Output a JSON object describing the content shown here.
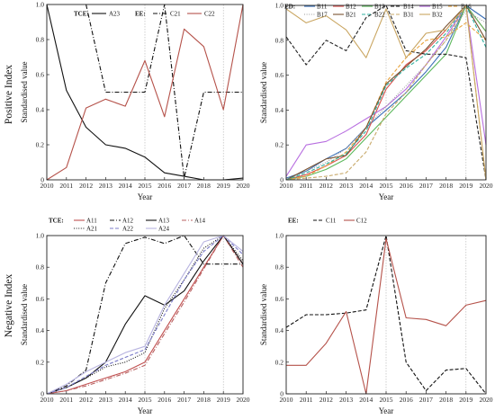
{
  "row_labels": {
    "top": "Positive Index",
    "bottom": "Negative Index"
  },
  "chart_data": [
    {
      "type": "line",
      "panel": "top-left",
      "xlabel": "Year",
      "ylabel": "Standardised value",
      "xlim": [
        2010,
        2020
      ],
      "ylim": [
        0,
        1
      ],
      "x_ticks": [
        "2010",
        "2011",
        "2012",
        "2013",
        "2014",
        "2015",
        "2016",
        "2017",
        "2018",
        "2019",
        "2020"
      ],
      "y_ticks": [
        "0",
        "0.2",
        "0.4",
        "0.6",
        "0.8",
        "1.0"
      ],
      "reference_lines_x": [
        2015,
        2019
      ],
      "legend": {
        "placement": "top",
        "groups": [
          {
            "title": "TCE:",
            "names": [
              "A23"
            ]
          },
          {
            "title": "EE:",
            "names": [
              "C21",
              "C22"
            ]
          }
        ]
      },
      "x": [
        2010,
        2011,
        2012,
        2013,
        2014,
        2015,
        2016,
        2017,
        2018,
        2019,
        2020
      ],
      "series": [
        {
          "name": "A23",
          "color": "#111111",
          "dash": "solid",
          "values": [
            1.0,
            0.51,
            0.3,
            0.2,
            0.18,
            0.13,
            0.04,
            0.02,
            0.0,
            0.0,
            0.01
          ]
        },
        {
          "name": "C21",
          "color": "#111111",
          "dash": "dashdot",
          "values": [
            null,
            null,
            1.0,
            0.5,
            0.5,
            0.5,
            1.0,
            0.01,
            0.5,
            0.5,
            0.5
          ]
        },
        {
          "name": "C22",
          "color": "#b5524a",
          "dash": "solid",
          "values": [
            0.0,
            0.07,
            0.41,
            0.46,
            0.42,
            0.68,
            0.36,
            0.86,
            0.76,
            0.4,
            1.0
          ]
        }
      ]
    },
    {
      "type": "line",
      "panel": "top-right",
      "xlabel": "Year",
      "ylabel": "Standardised value",
      "xlim": [
        2010,
        2020
      ],
      "ylim": [
        0,
        1
      ],
      "x_ticks": [
        "2010",
        "2011",
        "2012",
        "2013",
        "2014",
        "2015",
        "2016",
        "2017",
        "2018",
        "2019",
        "2020"
      ],
      "y_ticks": [
        "0",
        "0.2",
        "0.4",
        "0.6",
        "0.8",
        "1.0"
      ],
      "reference_lines_x": [
        2015,
        2019
      ],
      "legend": {
        "placement": "top",
        "groups": [
          {
            "title": "ED:",
            "names": [
              "B11",
              "B12",
              "B13",
              "B14",
              "B15",
              "B16",
              "B17",
              "B21",
              "B22",
              "B31",
              "B32"
            ]
          }
        ]
      },
      "x": [
        2010,
        2011,
        2012,
        2013,
        2014,
        2015,
        2016,
        2017,
        2018,
        2019,
        2020
      ],
      "series": [
        {
          "name": "B11",
          "color": "#3b6fb6",
          "dash": "solid",
          "values": [
            0.01,
            0.05,
            0.12,
            0.18,
            0.3,
            0.4,
            0.5,
            0.62,
            0.76,
            1.0,
            0.92
          ]
        },
        {
          "name": "B12",
          "color": "#d9534f",
          "dash": "solid",
          "values": [
            0.0,
            0.03,
            0.08,
            0.14,
            0.26,
            0.52,
            0.66,
            0.74,
            0.86,
            1.0,
            0.85
          ]
        },
        {
          "name": "B13",
          "color": "#5cb85c",
          "dash": "solid",
          "values": [
            0.0,
            0.02,
            0.06,
            0.12,
            0.24,
            0.36,
            0.48,
            0.6,
            0.72,
            1.0,
            0.85
          ]
        },
        {
          "name": "B14",
          "color": "#222222",
          "dash": "dashed",
          "values": [
            0.82,
            0.66,
            0.8,
            0.74,
            0.93,
            1.0,
            0.74,
            0.72,
            0.72,
            0.7,
            0.0
          ]
        },
        {
          "name": "B15",
          "color": "#b86fe0",
          "dash": "solid",
          "values": [
            0.02,
            0.2,
            0.22,
            0.28,
            0.35,
            0.42,
            0.52,
            0.66,
            0.82,
            1.0,
            0.2
          ]
        },
        {
          "name": "B16",
          "color": "#e8a33c",
          "dash": "dashed",
          "values": [
            0.0,
            0.02,
            0.08,
            0.16,
            0.3,
            0.56,
            0.7,
            0.8,
            0.82,
            0.9,
            0.8
          ]
        },
        {
          "name": "B17",
          "color": "#9b9b9b",
          "dash": "dotted",
          "values": [
            0.0,
            0.05,
            0.1,
            0.18,
            0.3,
            0.42,
            0.54,
            0.66,
            0.8,
            0.97,
            0.9
          ]
        },
        {
          "name": "B21",
          "color": "#7a5230",
          "dash": "solid",
          "values": [
            0.0,
            0.06,
            0.12,
            0.14,
            0.3,
            0.55,
            0.65,
            0.75,
            0.88,
            1.0,
            0.8
          ]
        },
        {
          "name": "B22",
          "color": "#30b0a0",
          "dash": "dashed",
          "values": [
            0.0,
            0.04,
            0.09,
            0.15,
            0.28,
            0.54,
            0.64,
            0.72,
            0.84,
            1.0,
            0.76
          ]
        },
        {
          "name": "B31",
          "color": "#c8a96a",
          "dash": "dashed",
          "values": [
            0.0,
            0.01,
            0.02,
            0.04,
            0.16,
            0.38,
            0.5,
            0.66,
            0.8,
            1.0,
            0.0
          ]
        },
        {
          "name": "B32",
          "color": "#c9a560",
          "dash": "solid",
          "values": [
            0.98,
            0.9,
            0.94,
            0.86,
            0.7,
            0.98,
            0.7,
            0.84,
            0.86,
            1.0,
            0.0
          ]
        }
      ]
    },
    {
      "type": "line",
      "panel": "bottom-left",
      "xlabel": "Year",
      "ylabel": "Standardised value",
      "xlim": [
        2010,
        2020
      ],
      "ylim": [
        0,
        1
      ],
      "x_ticks": [
        "2010",
        "2011",
        "2012",
        "2013",
        "2014",
        "2015",
        "2016",
        "2017",
        "2018",
        "2019",
        "2020"
      ],
      "y_ticks": [
        "0",
        "0.2",
        "0.4",
        "0.6",
        "0.8",
        "1.0"
      ],
      "reference_lines_x": [
        2015,
        2019
      ],
      "legend": {
        "placement": "top",
        "groups": [
          {
            "title": "TCE:",
            "names": [
              "A11",
              "A12",
              "A13",
              "A14",
              "A21",
              "A22",
              "A24"
            ]
          }
        ]
      },
      "x": [
        2010,
        2011,
        2012,
        2013,
        2014,
        2015,
        2016,
        2017,
        2018,
        2019,
        2020
      ],
      "series": [
        {
          "name": "A11",
          "color": "#c05050",
          "dash": "solid",
          "values": [
            0.0,
            0.02,
            0.06,
            0.1,
            0.14,
            0.2,
            0.4,
            0.6,
            0.8,
            1.0,
            0.82
          ]
        },
        {
          "name": "A12",
          "color": "#111111",
          "dash": "dashdot",
          "values": [
            0.0,
            0.05,
            0.15,
            0.7,
            0.95,
            0.99,
            0.95,
            1.0,
            0.82,
            0.82,
            0.82
          ]
        },
        {
          "name": "A13",
          "color": "#111111",
          "dash": "solid",
          "values": [
            0.0,
            0.04,
            0.1,
            0.2,
            0.44,
            0.62,
            0.56,
            0.65,
            0.84,
            1.0,
            0.82
          ]
        },
        {
          "name": "A14",
          "color": "#b86060",
          "dash": "dashdot",
          "values": [
            0.0,
            0.02,
            0.05,
            0.09,
            0.13,
            0.18,
            0.38,
            0.58,
            0.79,
            1.0,
            0.8
          ]
        },
        {
          "name": "A21",
          "color": "#111111",
          "dash": "dotted",
          "values": [
            0.0,
            0.04,
            0.1,
            0.17,
            0.2,
            0.26,
            0.54,
            0.72,
            0.92,
            1.0,
            0.84
          ]
        },
        {
          "name": "A22",
          "color": "#7c7cc8",
          "dash": "dashed",
          "values": [
            0.0,
            0.04,
            0.11,
            0.18,
            0.23,
            0.28,
            0.5,
            0.72,
            0.9,
            1.0,
            0.88
          ]
        },
        {
          "name": "A24",
          "color": "#b8b4e0",
          "dash": "solid",
          "values": [
            0.0,
            0.06,
            0.14,
            0.2,
            0.26,
            0.3,
            0.56,
            0.76,
            0.96,
            1.0,
            0.9
          ]
        }
      ]
    },
    {
      "type": "line",
      "panel": "bottom-right",
      "xlabel": "Year",
      "ylabel": "Standardised value",
      "xlim": [
        2010,
        2020
      ],
      "ylim": [
        0,
        1
      ],
      "x_ticks": [
        "2010",
        "2011",
        "2012",
        "2013",
        "2014",
        "2015",
        "2016",
        "2017",
        "2018",
        "2019",
        "2020"
      ],
      "y_ticks": [
        "0",
        "0.2",
        "0.4",
        "0.6",
        "0.8",
        "1.0"
      ],
      "reference_lines_x": [
        2015,
        2019
      ],
      "legend": {
        "placement": "top",
        "groups": [
          {
            "title": "EE:",
            "names": [
              "C11",
              "C12"
            ]
          }
        ]
      },
      "x": [
        2010,
        2011,
        2012,
        2013,
        2014,
        2015,
        2016,
        2017,
        2018,
        2019,
        2020
      ],
      "series": [
        {
          "name": "C11",
          "color": "#111111",
          "dash": "dashed",
          "values": [
            0.42,
            0.5,
            0.5,
            0.51,
            0.53,
            1.0,
            0.2,
            0.02,
            0.15,
            0.16,
            0.0
          ]
        },
        {
          "name": "C12",
          "color": "#b5524a",
          "dash": "solid",
          "values": [
            0.18,
            0.18,
            0.32,
            0.52,
            0.0,
            0.98,
            0.48,
            0.47,
            0.43,
            0.56,
            0.59
          ]
        }
      ]
    }
  ]
}
